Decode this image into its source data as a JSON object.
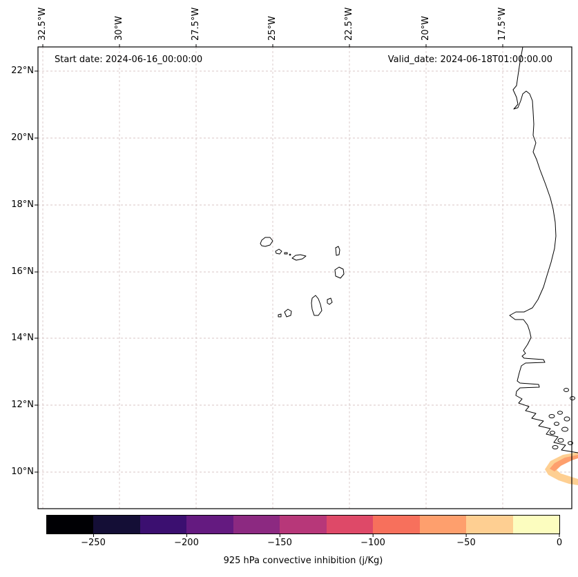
{
  "titles": {
    "start_date": "Start date: 2024-06-16_00:00:00",
    "valid_date": "Valid_date: 2024-06-18T01:00:00.00"
  },
  "axes": {
    "x_ticks": [
      "32.5°W",
      "30°W",
      "27.5°W",
      "25°W",
      "22.5°W",
      "20°W",
      "17.5°W"
    ],
    "y_ticks": [
      "22°N",
      "20°N",
      "18°N",
      "16°N",
      "14°N",
      "12°N",
      "10°N"
    ]
  },
  "colorbar": {
    "label": "925 hPa convective inhibition (j/Kg)",
    "tick_labels": [
      "−250",
      "−200",
      "−150",
      "−100",
      "−50",
      "0"
    ],
    "colors": [
      "#000004",
      "#140e36",
      "#3b0f70",
      "#641a80",
      "#8c2981",
      "#b73779",
      "#de4968",
      "#f7705c",
      "#fe9f6d",
      "#fecf92",
      "#fcfdbf"
    ]
  },
  "chart_data": {
    "type": "heatmap",
    "title": "",
    "variable": "925 hPa convective inhibition (j/Kg)",
    "colormap": "magma (discrete filled contours)",
    "color_levels": [
      -275,
      -250,
      -225,
      -200,
      -175,
      -150,
      -125,
      -100,
      -75,
      -50,
      -25,
      0
    ],
    "colorbar_tick_values": [
      -250,
      -200,
      -150,
      -100,
      -50,
      0
    ],
    "x_tick_longitudes_deg": [
      -32.5,
      -30,
      -27.5,
      -25,
      -22.5,
      -20,
      -17.5
    ],
    "y_tick_latitudes_deg": [
      22,
      20,
      18,
      16,
      14,
      12,
      10
    ],
    "map_extent": {
      "lon_min": -32.7,
      "lon_max": -15.2,
      "lat_min": 8.9,
      "lat_max": 22.7
    },
    "annotations": [
      "Start date: 2024-06-16_00:00:00",
      "Valid_date: 2024-06-18T01:00:00.00"
    ],
    "geography": [
      "West African coastline (Mauritania, Senegal, The Gambia, Guinea-Bissau)",
      "Cape Verde archipelago",
      "Bijagós islands"
    ],
    "gridlines": {
      "style": "dashed",
      "visible": true,
      "color": "#d8c6c6"
    },
    "data_regions": [
      {
        "description": "Small filled contour of weak convective inhibition over the ocean near the coast at about 10°N, clipped by the right edge of the map; the rest of the domain shows no filled values",
        "approx_lat_deg": 10,
        "approx_lon_deg": -15.5,
        "value_range_j_per_kg": [
          -75,
          -25
        ],
        "colors": [
          "#fecf92",
          "#fe9f6d"
        ]
      }
    ]
  }
}
